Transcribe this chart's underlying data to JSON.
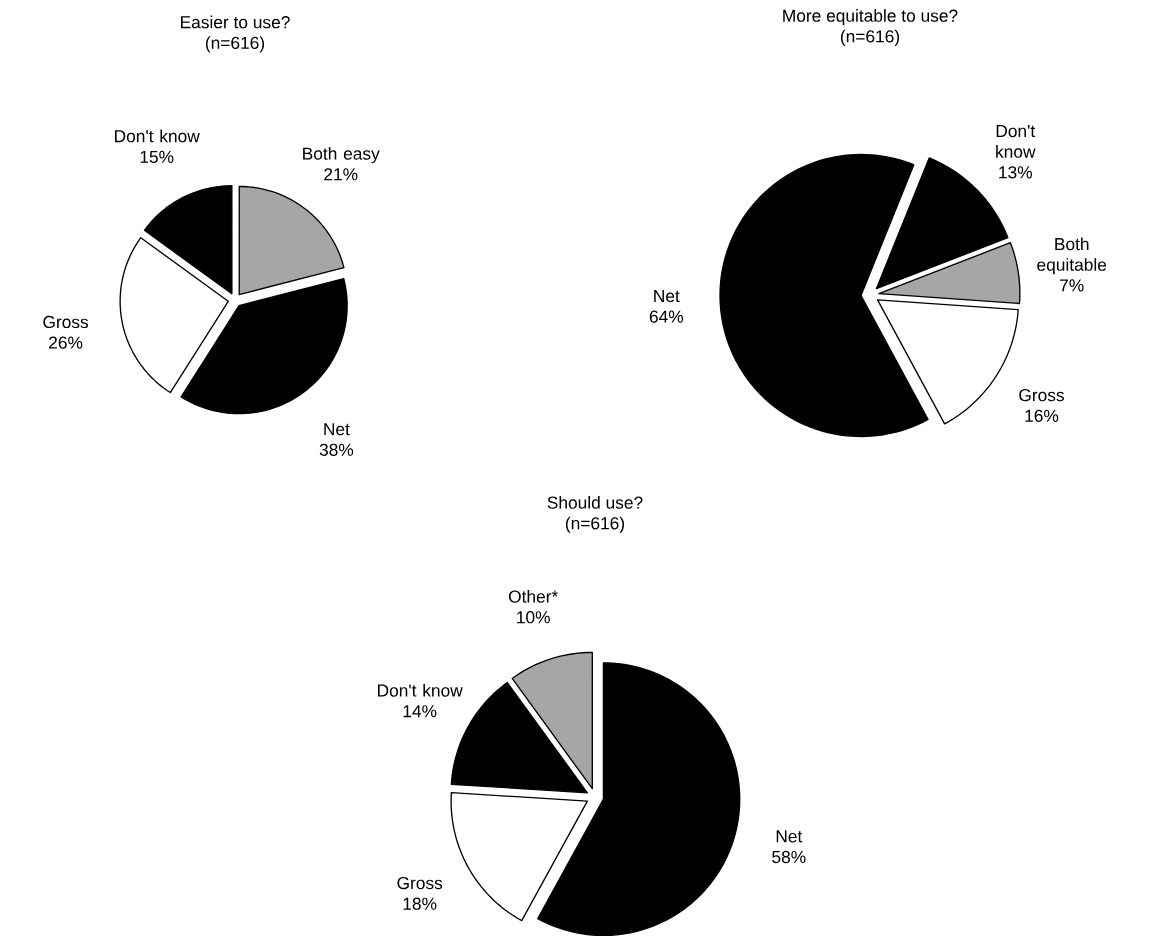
{
  "chart_data": [
    {
      "type": "pie",
      "title": "Easier to use?",
      "subtitle": "(n=616)",
      "categories": [
        "Both easy",
        "Net",
        "Gross",
        "Don't know"
      ],
      "values": [
        21,
        38,
        26,
        15
      ],
      "value_labels": [
        "21%",
        "38%",
        "26%",
        "15%"
      ],
      "colors": [
        "#a6a6a6",
        "#000000",
        "#ffffff",
        "#000000"
      ]
    },
    {
      "type": "pie",
      "title": "More equitable to use?",
      "subtitle": "(n=616)",
      "categories": [
        "Don't know",
        "Both equitable",
        "Gross",
        "Net"
      ],
      "values": [
        13,
        7,
        16,
        64
      ],
      "value_labels": [
        "13%",
        "7%",
        "16%",
        "64%"
      ],
      "colors": [
        "#000000",
        "#a6a6a6",
        "#ffffff",
        "#000000"
      ]
    },
    {
      "type": "pie",
      "title": "Should use?",
      "subtitle": "(n=616)",
      "categories": [
        "Net",
        "Gross",
        "Don't know",
        "Other*"
      ],
      "values": [
        58,
        18,
        14,
        10
      ],
      "value_labels": [
        "58%",
        "18%",
        "14%",
        "10%"
      ],
      "colors": [
        "#000000",
        "#ffffff",
        "#000000",
        "#a6a6a6"
      ]
    }
  ]
}
